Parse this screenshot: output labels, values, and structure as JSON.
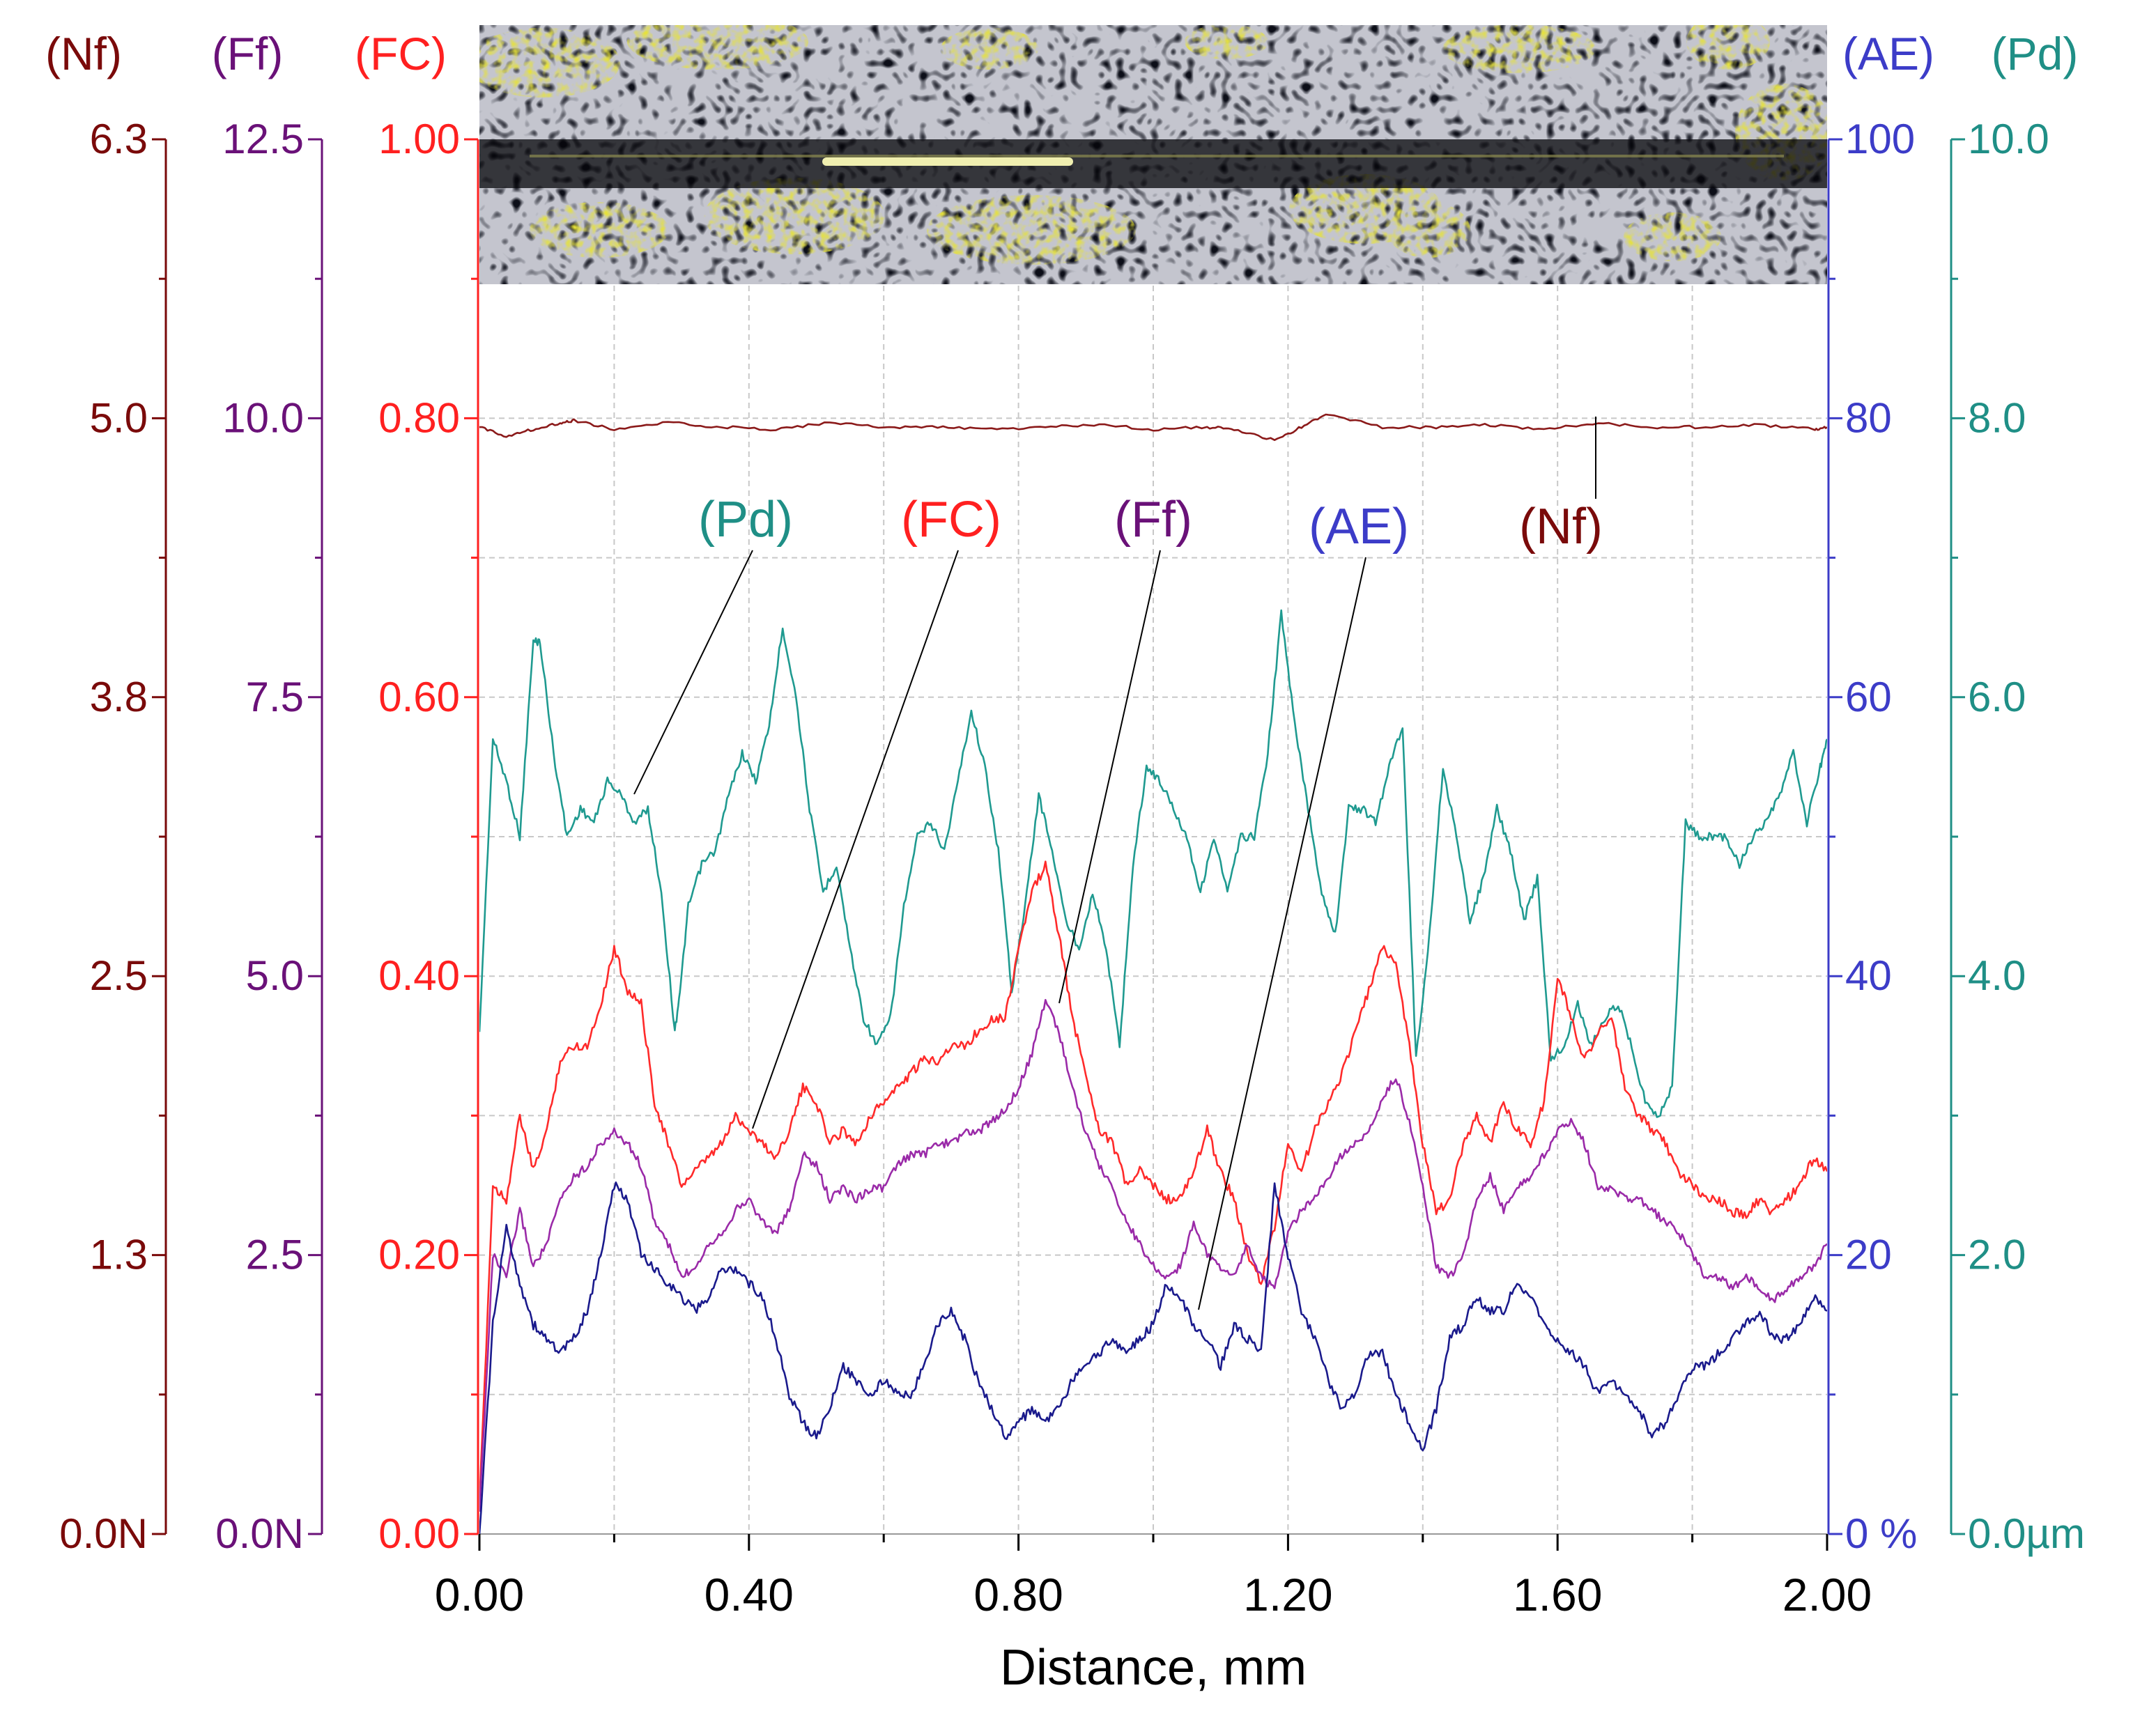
{
  "chart_data": {
    "type": "line",
    "xlabel": "Distance, mm",
    "xlim": [
      0,
      2.0
    ],
    "x_ticks": [
      "0.00",
      "0.40",
      "0.80",
      "1.20",
      "1.60",
      "2.00"
    ],
    "grid": true,
    "inset_image": "micrograph of scratch track (dark crack network with yellow deposits)",
    "axes": [
      {
        "key": "Nf",
        "label": "(Nf)",
        "side": "left",
        "color": "#7a0a0a",
        "lim": [
          0,
          6.3
        ],
        "ticks": [
          {
            "v": 0,
            "t": "0.0N"
          },
          {
            "v": 1.26,
            "t": "1.3"
          },
          {
            "v": 2.52,
            "t": "2.5"
          },
          {
            "v": 3.78,
            "t": "3.8"
          },
          {
            "v": 5.04,
            "t": "5.0"
          },
          {
            "v": 6.3,
            "t": "6.3"
          }
        ]
      },
      {
        "key": "Ff",
        "label": "(Ff)",
        "side": "left",
        "color": "#6a1178",
        "lim": [
          0,
          12.5
        ],
        "ticks": [
          {
            "v": 0,
            "t": "0.0N"
          },
          {
            "v": 2.5,
            "t": "2.5"
          },
          {
            "v": 5,
            "t": "5.0"
          },
          {
            "v": 7.5,
            "t": "7.5"
          },
          {
            "v": 10,
            "t": "10.0"
          },
          {
            "v": 12.5,
            "t": "12.5"
          }
        ]
      },
      {
        "key": "FC",
        "label": "(FC)",
        "side": "left",
        "color": "#ff2020",
        "lim": [
          0,
          1.0
        ],
        "ticks": [
          {
            "v": 0,
            "t": "0.00"
          },
          {
            "v": 0.2,
            "t": "0.20"
          },
          {
            "v": 0.4,
            "t": "0.40"
          },
          {
            "v": 0.6,
            "t": "0.60"
          },
          {
            "v": 0.8,
            "t": "0.80"
          },
          {
            "v": 1.0,
            "t": "1.00"
          }
        ]
      },
      {
        "key": "AE",
        "label": "(AE)",
        "side": "right",
        "color": "#3c3cc8",
        "lim": [
          0,
          100
        ],
        "ticks": [
          {
            "v": 0,
            "t": "0 %"
          },
          {
            "v": 20,
            "t": "20"
          },
          {
            "v": 40,
            "t": "40"
          },
          {
            "v": 60,
            "t": "60"
          },
          {
            "v": 80,
            "t": "80"
          },
          {
            "v": 100,
            "t": "100"
          }
        ]
      },
      {
        "key": "Pd",
        "label": "(Pd)",
        "side": "right",
        "color": "#1f8f86",
        "lim": [
          0,
          10
        ],
        "ticks": [
          {
            "v": 0,
            "t": "0.0µm"
          },
          {
            "v": 2,
            "t": "2.0"
          },
          {
            "v": 4,
            "t": "4.0"
          },
          {
            "v": 6,
            "t": "6.0"
          },
          {
            "v": 8,
            "t": "8.0"
          },
          {
            "v": 10,
            "t": "10.0"
          }
        ]
      }
    ],
    "series": [
      {
        "name": "(Pd)",
        "axis": "Pd",
        "color": "#1f9a90",
        "x": [
          0.0,
          0.02,
          0.04,
          0.06,
          0.08,
          0.09,
          0.11,
          0.13,
          0.15,
          0.17,
          0.19,
          0.21,
          0.23,
          0.25,
          0.27,
          0.29,
          0.3,
          0.31,
          0.33,
          0.35,
          0.37,
          0.39,
          0.41,
          0.43,
          0.45,
          0.47,
          0.49,
          0.51,
          0.53,
          0.55,
          0.57,
          0.59,
          0.61,
          0.63,
          0.65,
          0.67,
          0.69,
          0.71,
          0.73,
          0.75,
          0.77,
          0.79,
          0.81,
          0.83,
          0.85,
          0.87,
          0.89,
          0.91,
          0.93,
          0.95,
          0.97,
          0.99,
          1.01,
          1.03,
          1.05,
          1.07,
          1.09,
          1.11,
          1.13,
          1.15,
          1.17,
          1.19,
          1.21,
          1.23,
          1.25,
          1.27,
          1.29,
          1.31,
          1.33,
          1.35,
          1.37,
          1.39,
          1.41,
          1.43,
          1.45,
          1.47,
          1.49,
          1.51,
          1.53,
          1.55,
          1.57,
          1.59,
          1.61,
          1.63,
          1.65,
          1.67,
          1.69,
          1.71,
          1.73,
          1.75,
          1.77,
          1.79,
          1.81,
          1.83,
          1.85,
          1.87,
          1.89,
          1.91,
          1.93,
          1.95,
          1.97,
          1.99,
          2.0
        ],
        "y": [
          3.6,
          5.7,
          5.4,
          5.0,
          6.4,
          6.4,
          5.6,
          5.0,
          5.2,
          5.1,
          5.4,
          5.3,
          5.1,
          5.2,
          4.6,
          3.6,
          4.0,
          4.5,
          4.8,
          4.9,
          5.3,
          5.6,
          5.4,
          5.8,
          6.5,
          6.0,
          5.2,
          4.6,
          4.8,
          4.2,
          3.7,
          3.5,
          3.7,
          4.5,
          5.0,
          5.1,
          4.9,
          5.4,
          5.9,
          5.5,
          4.9,
          3.9,
          4.5,
          5.3,
          4.9,
          4.4,
          4.2,
          4.6,
          4.2,
          3.5,
          4.8,
          5.5,
          5.4,
          5.2,
          5.0,
          4.6,
          5.0,
          4.6,
          5.0,
          5.0,
          5.6,
          6.6,
          5.8,
          5.2,
          4.6,
          4.3,
          5.2,
          5.2,
          5.1,
          5.5,
          5.8,
          3.4,
          4.3,
          5.5,
          5.0,
          4.4,
          4.7,
          5.2,
          4.9,
          4.4,
          4.7,
          3.4,
          3.5,
          3.8,
          3.5,
          3.7,
          3.8,
          3.5,
          3.1,
          3.0,
          3.2,
          5.1,
          5.0,
          5.0,
          5.0,
          4.8,
          5.0,
          5.1,
          5.3,
          5.6,
          5.1,
          5.5,
          5.7
        ]
      },
      {
        "name": "(FC)",
        "axis": "FC",
        "color": "#ff2a2a",
        "x": [
          0.0,
          0.02,
          0.04,
          0.06,
          0.08,
          0.1,
          0.12,
          0.14,
          0.16,
          0.18,
          0.2,
          0.22,
          0.24,
          0.26,
          0.28,
          0.3,
          0.32,
          0.34,
          0.36,
          0.38,
          0.4,
          0.42,
          0.44,
          0.46,
          0.48,
          0.5,
          0.52,
          0.54,
          0.56,
          0.58,
          0.6,
          0.62,
          0.64,
          0.66,
          0.68,
          0.7,
          0.72,
          0.74,
          0.76,
          0.78,
          0.8,
          0.82,
          0.84,
          0.86,
          0.88,
          0.9,
          0.92,
          0.94,
          0.96,
          0.98,
          1.0,
          1.02,
          1.04,
          1.06,
          1.08,
          1.1,
          1.12,
          1.14,
          1.16,
          1.18,
          1.2,
          1.22,
          1.24,
          1.26,
          1.28,
          1.3,
          1.32,
          1.34,
          1.36,
          1.38,
          1.4,
          1.42,
          1.44,
          1.46,
          1.48,
          1.5,
          1.52,
          1.54,
          1.56,
          1.58,
          1.6,
          1.62,
          1.64,
          1.66,
          1.68,
          1.7,
          1.72,
          1.74,
          1.76,
          1.78,
          1.8,
          1.82,
          1.84,
          1.86,
          1.88,
          1.9,
          1.92,
          1.94,
          1.96,
          1.98,
          2.0
        ],
        "y": [
          0.02,
          0.25,
          0.24,
          0.3,
          0.26,
          0.29,
          0.34,
          0.35,
          0.35,
          0.38,
          0.42,
          0.39,
          0.38,
          0.31,
          0.28,
          0.25,
          0.26,
          0.27,
          0.28,
          0.3,
          0.29,
          0.28,
          0.27,
          0.29,
          0.32,
          0.31,
          0.28,
          0.29,
          0.28,
          0.3,
          0.31,
          0.32,
          0.33,
          0.34,
          0.34,
          0.35,
          0.35,
          0.36,
          0.37,
          0.37,
          0.42,
          0.46,
          0.48,
          0.43,
          0.37,
          0.33,
          0.29,
          0.28,
          0.25,
          0.26,
          0.25,
          0.24,
          0.24,
          0.26,
          0.29,
          0.26,
          0.24,
          0.2,
          0.18,
          0.22,
          0.28,
          0.26,
          0.29,
          0.31,
          0.33,
          0.36,
          0.39,
          0.42,
          0.41,
          0.35,
          0.28,
          0.23,
          0.24,
          0.28,
          0.3,
          0.28,
          0.31,
          0.29,
          0.28,
          0.31,
          0.4,
          0.37,
          0.34,
          0.36,
          0.37,
          0.32,
          0.3,
          0.29,
          0.28,
          0.26,
          0.25,
          0.24,
          0.24,
          0.23,
          0.23,
          0.24,
          0.23,
          0.24,
          0.25,
          0.27,
          0.26
        ]
      },
      {
        "name": "(Ff)",
        "axis": "Ff",
        "color": "#9a2aa8",
        "x": [
          0.0,
          0.02,
          0.04,
          0.06,
          0.08,
          0.1,
          0.12,
          0.14,
          0.16,
          0.18,
          0.2,
          0.22,
          0.24,
          0.26,
          0.28,
          0.3,
          0.32,
          0.34,
          0.36,
          0.38,
          0.4,
          0.42,
          0.44,
          0.46,
          0.48,
          0.5,
          0.52,
          0.54,
          0.56,
          0.58,
          0.6,
          0.62,
          0.64,
          0.66,
          0.68,
          0.7,
          0.72,
          0.74,
          0.76,
          0.78,
          0.8,
          0.82,
          0.84,
          0.86,
          0.88,
          0.9,
          0.92,
          0.94,
          0.96,
          0.98,
          1.0,
          1.02,
          1.04,
          1.06,
          1.08,
          1.1,
          1.12,
          1.14,
          1.16,
          1.18,
          1.2,
          1.22,
          1.24,
          1.26,
          1.28,
          1.3,
          1.32,
          1.34,
          1.36,
          1.38,
          1.4,
          1.42,
          1.44,
          1.46,
          1.48,
          1.5,
          1.52,
          1.54,
          1.56,
          1.58,
          1.6,
          1.62,
          1.64,
          1.66,
          1.68,
          1.7,
          1.72,
          1.74,
          1.76,
          1.78,
          1.8,
          1.82,
          1.84,
          1.86,
          1.88,
          1.9,
          1.92,
          1.94,
          1.96,
          1.98,
          2.0
        ],
        "y": [
          0.2,
          2.5,
          2.3,
          2.9,
          2.4,
          2.6,
          3.0,
          3.2,
          3.3,
          3.5,
          3.6,
          3.5,
          3.3,
          2.8,
          2.6,
          2.3,
          2.4,
          2.6,
          2.7,
          2.9,
          3.0,
          2.8,
          2.7,
          2.9,
          3.4,
          3.3,
          3.0,
          3.1,
          3.0,
          3.1,
          3.1,
          3.3,
          3.4,
          3.4,
          3.5,
          3.5,
          3.6,
          3.6,
          3.7,
          3.8,
          4.0,
          4.3,
          4.8,
          4.5,
          4.0,
          3.6,
          3.3,
          3.1,
          2.8,
          2.6,
          2.4,
          2.3,
          2.4,
          2.8,
          2.5,
          2.4,
          2.3,
          2.6,
          2.3,
          2.2,
          2.7,
          2.9,
          3.0,
          3.2,
          3.4,
          3.5,
          3.6,
          3.9,
          4.1,
          3.7,
          3.1,
          2.4,
          2.3,
          2.5,
          3.0,
          3.2,
          2.9,
          3.1,
          3.2,
          3.4,
          3.6,
          3.7,
          3.5,
          3.1,
          3.1,
          3.0,
          3.0,
          2.9,
          2.8,
          2.7,
          2.5,
          2.3,
          2.3,
          2.2,
          2.3,
          2.2,
          2.1,
          2.2,
          2.3,
          2.4,
          2.6
        ]
      },
      {
        "name": "(AE)",
        "axis": "AE",
        "color": "#1a1a8c",
        "x": [
          0.0,
          0.02,
          0.04,
          0.06,
          0.08,
          0.1,
          0.12,
          0.14,
          0.16,
          0.18,
          0.2,
          0.22,
          0.24,
          0.26,
          0.28,
          0.3,
          0.32,
          0.34,
          0.36,
          0.38,
          0.4,
          0.42,
          0.44,
          0.46,
          0.48,
          0.5,
          0.52,
          0.54,
          0.56,
          0.58,
          0.6,
          0.62,
          0.64,
          0.66,
          0.68,
          0.7,
          0.72,
          0.74,
          0.76,
          0.78,
          0.8,
          0.82,
          0.84,
          0.86,
          0.88,
          0.9,
          0.92,
          0.94,
          0.96,
          0.98,
          1.0,
          1.02,
          1.04,
          1.06,
          1.08,
          1.1,
          1.12,
          1.14,
          1.16,
          1.18,
          1.2,
          1.22,
          1.24,
          1.26,
          1.28,
          1.3,
          1.32,
          1.34,
          1.36,
          1.38,
          1.4,
          1.42,
          1.44,
          1.46,
          1.48,
          1.5,
          1.52,
          1.54,
          1.56,
          1.58,
          1.6,
          1.62,
          1.64,
          1.66,
          1.68,
          1.7,
          1.72,
          1.74,
          1.76,
          1.78,
          1.8,
          1.82,
          1.84,
          1.86,
          1.88,
          1.9,
          1.92,
          1.94,
          1.96,
          1.98,
          2.0
        ],
        "y": [
          0,
          15,
          22,
          18,
          15,
          14,
          13,
          14,
          16,
          20,
          25,
          24,
          20,
          19,
          18,
          17,
          16,
          17,
          19,
          19,
          18,
          17,
          14,
          10,
          8,
          7,
          9,
          12,
          11,
          10,
          11,
          10,
          10,
          12,
          15,
          16,
          14,
          11,
          9,
          7,
          8,
          9,
          8,
          9,
          11,
          12,
          13,
          14,
          13,
          14,
          15,
          18,
          17,
          15,
          14,
          12,
          15,
          14,
          13,
          25,
          20,
          16,
          14,
          11,
          9,
          10,
          13,
          13,
          10,
          8,
          6,
          9,
          14,
          15,
          17,
          16,
          16,
          18,
          17,
          15,
          14,
          13,
          12,
          10,
          11,
          10,
          9,
          7,
          8,
          10,
          12,
          12,
          13,
          14,
          15,
          16,
          14,
          14,
          15,
          17,
          16
        ]
      },
      {
        "name": "(Nf)",
        "axis": "Nf",
        "color": "#8b1a1a",
        "x": [
          0.0,
          0.04,
          0.08,
          0.12,
          0.14,
          0.2,
          0.28,
          0.36,
          0.44,
          0.52,
          0.6,
          0.68,
          0.76,
          0.84,
          0.92,
          1.0,
          1.08,
          1.12,
          1.18,
          1.22,
          1.26,
          1.34,
          1.42,
          1.5,
          1.58,
          1.66,
          1.74,
          1.82,
          1.9,
          1.98,
          2.0
        ],
        "y": [
          5.0,
          4.96,
          4.99,
          5.02,
          5.03,
          4.99,
          5.02,
          5.0,
          4.99,
          5.02,
          5.0,
          5.0,
          4.99,
          5.0,
          5.01,
          4.99,
          5.0,
          4.99,
          4.94,
          5.0,
          5.06,
          5.0,
          5.0,
          5.01,
          4.99,
          5.02,
          5.0,
          5.0,
          5.01,
          4.99,
          5.0
        ]
      }
    ],
    "annotations": [
      {
        "text": "(Pd)",
        "color": "#1f8f86"
      },
      {
        "text": "(FC)",
        "color": "#ff2020"
      },
      {
        "text": "(Ff)",
        "color": "#6a1178"
      },
      {
        "text": "(AE)",
        "color": "#3c3cc8"
      },
      {
        "text": "(Nf)",
        "color": "#7a0a0a"
      }
    ]
  }
}
